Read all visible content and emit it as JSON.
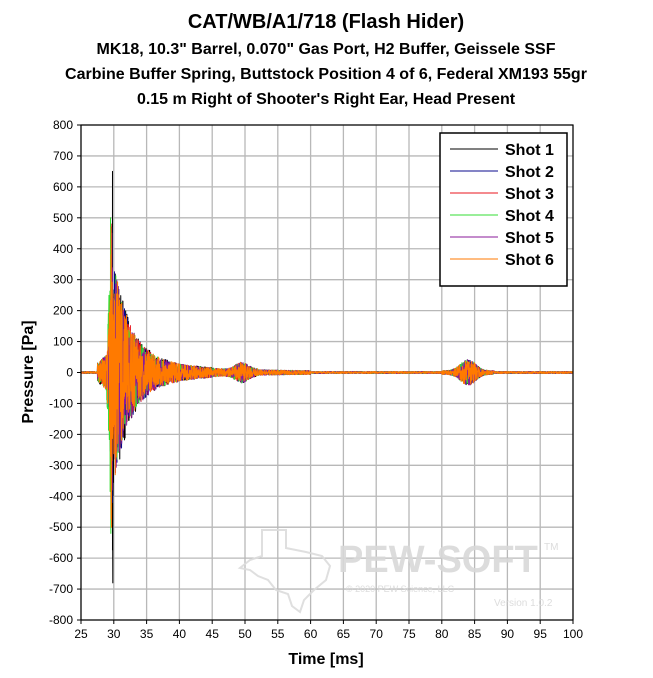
{
  "chart_data": {
    "type": "line",
    "title": "CAT/WB/A1/718 (Flash Hider)",
    "subtitle_lines": [
      "MK18, 10.3\" Barrel, 0.070\" Gas Port, H2 Buffer, Geissele SSF",
      "Carbine Buffer Spring, Buttstock Position 4 of 6, Federal XM193 55gr",
      "0.15 m Right of Shooter's Right Ear, Head Present"
    ],
    "xlabel": "Time [ms]",
    "ylabel": "Pressure [Pa]",
    "xlim": [
      25,
      100
    ],
    "ylim": [
      -800,
      800
    ],
    "xticks": [
      "25",
      "30",
      "35",
      "40",
      "45",
      "50",
      "55",
      "60",
      "65",
      "70",
      "75",
      "80",
      "85",
      "90",
      "95",
      "100"
    ],
    "yticks": [
      "800",
      "700",
      "600",
      "500",
      "400",
      "300",
      "200",
      "100",
      "0",
      "-100",
      "-200",
      "-300",
      "-400",
      "-500",
      "-600",
      "-700",
      "-800"
    ],
    "grid": true,
    "legend_position": "top-right",
    "series": [
      {
        "name": "Shot 1",
        "color": "#000000",
        "peak_max": 650,
        "peak_min": -680,
        "peak_time": 29.8
      },
      {
        "name": "Shot 2",
        "color": "#0a0a8c",
        "peak_max": 470,
        "peak_min": -420,
        "peak_time": 29.7
      },
      {
        "name": "Shot 3",
        "color": "#e8141c",
        "peak_max": 480,
        "peak_min": -390,
        "peak_time": 29.6
      },
      {
        "name": "Shot 4",
        "color": "#33dd33",
        "peak_max": 500,
        "peak_min": -520,
        "peak_time": 29.5
      },
      {
        "name": "Shot 5",
        "color": "#8a1a9a",
        "peak_max": 450,
        "peak_min": -380,
        "peak_time": 29.7
      },
      {
        "name": "Shot 6",
        "color": "#ff7a00",
        "peak_max": 470,
        "peak_min": -500,
        "peak_time": 29.6
      }
    ],
    "features": {
      "main_impulse_ms": [
        28,
        45
      ],
      "secondary_event_ms": [
        47,
        52
      ],
      "tertiary_event_ms": [
        80,
        88
      ]
    }
  },
  "watermark": {
    "brand": "PEW-SOFT",
    "trademark": "TM",
    "copyright": "© 2020 PEW Science, LLC",
    "version": "Version 1.0.2"
  }
}
